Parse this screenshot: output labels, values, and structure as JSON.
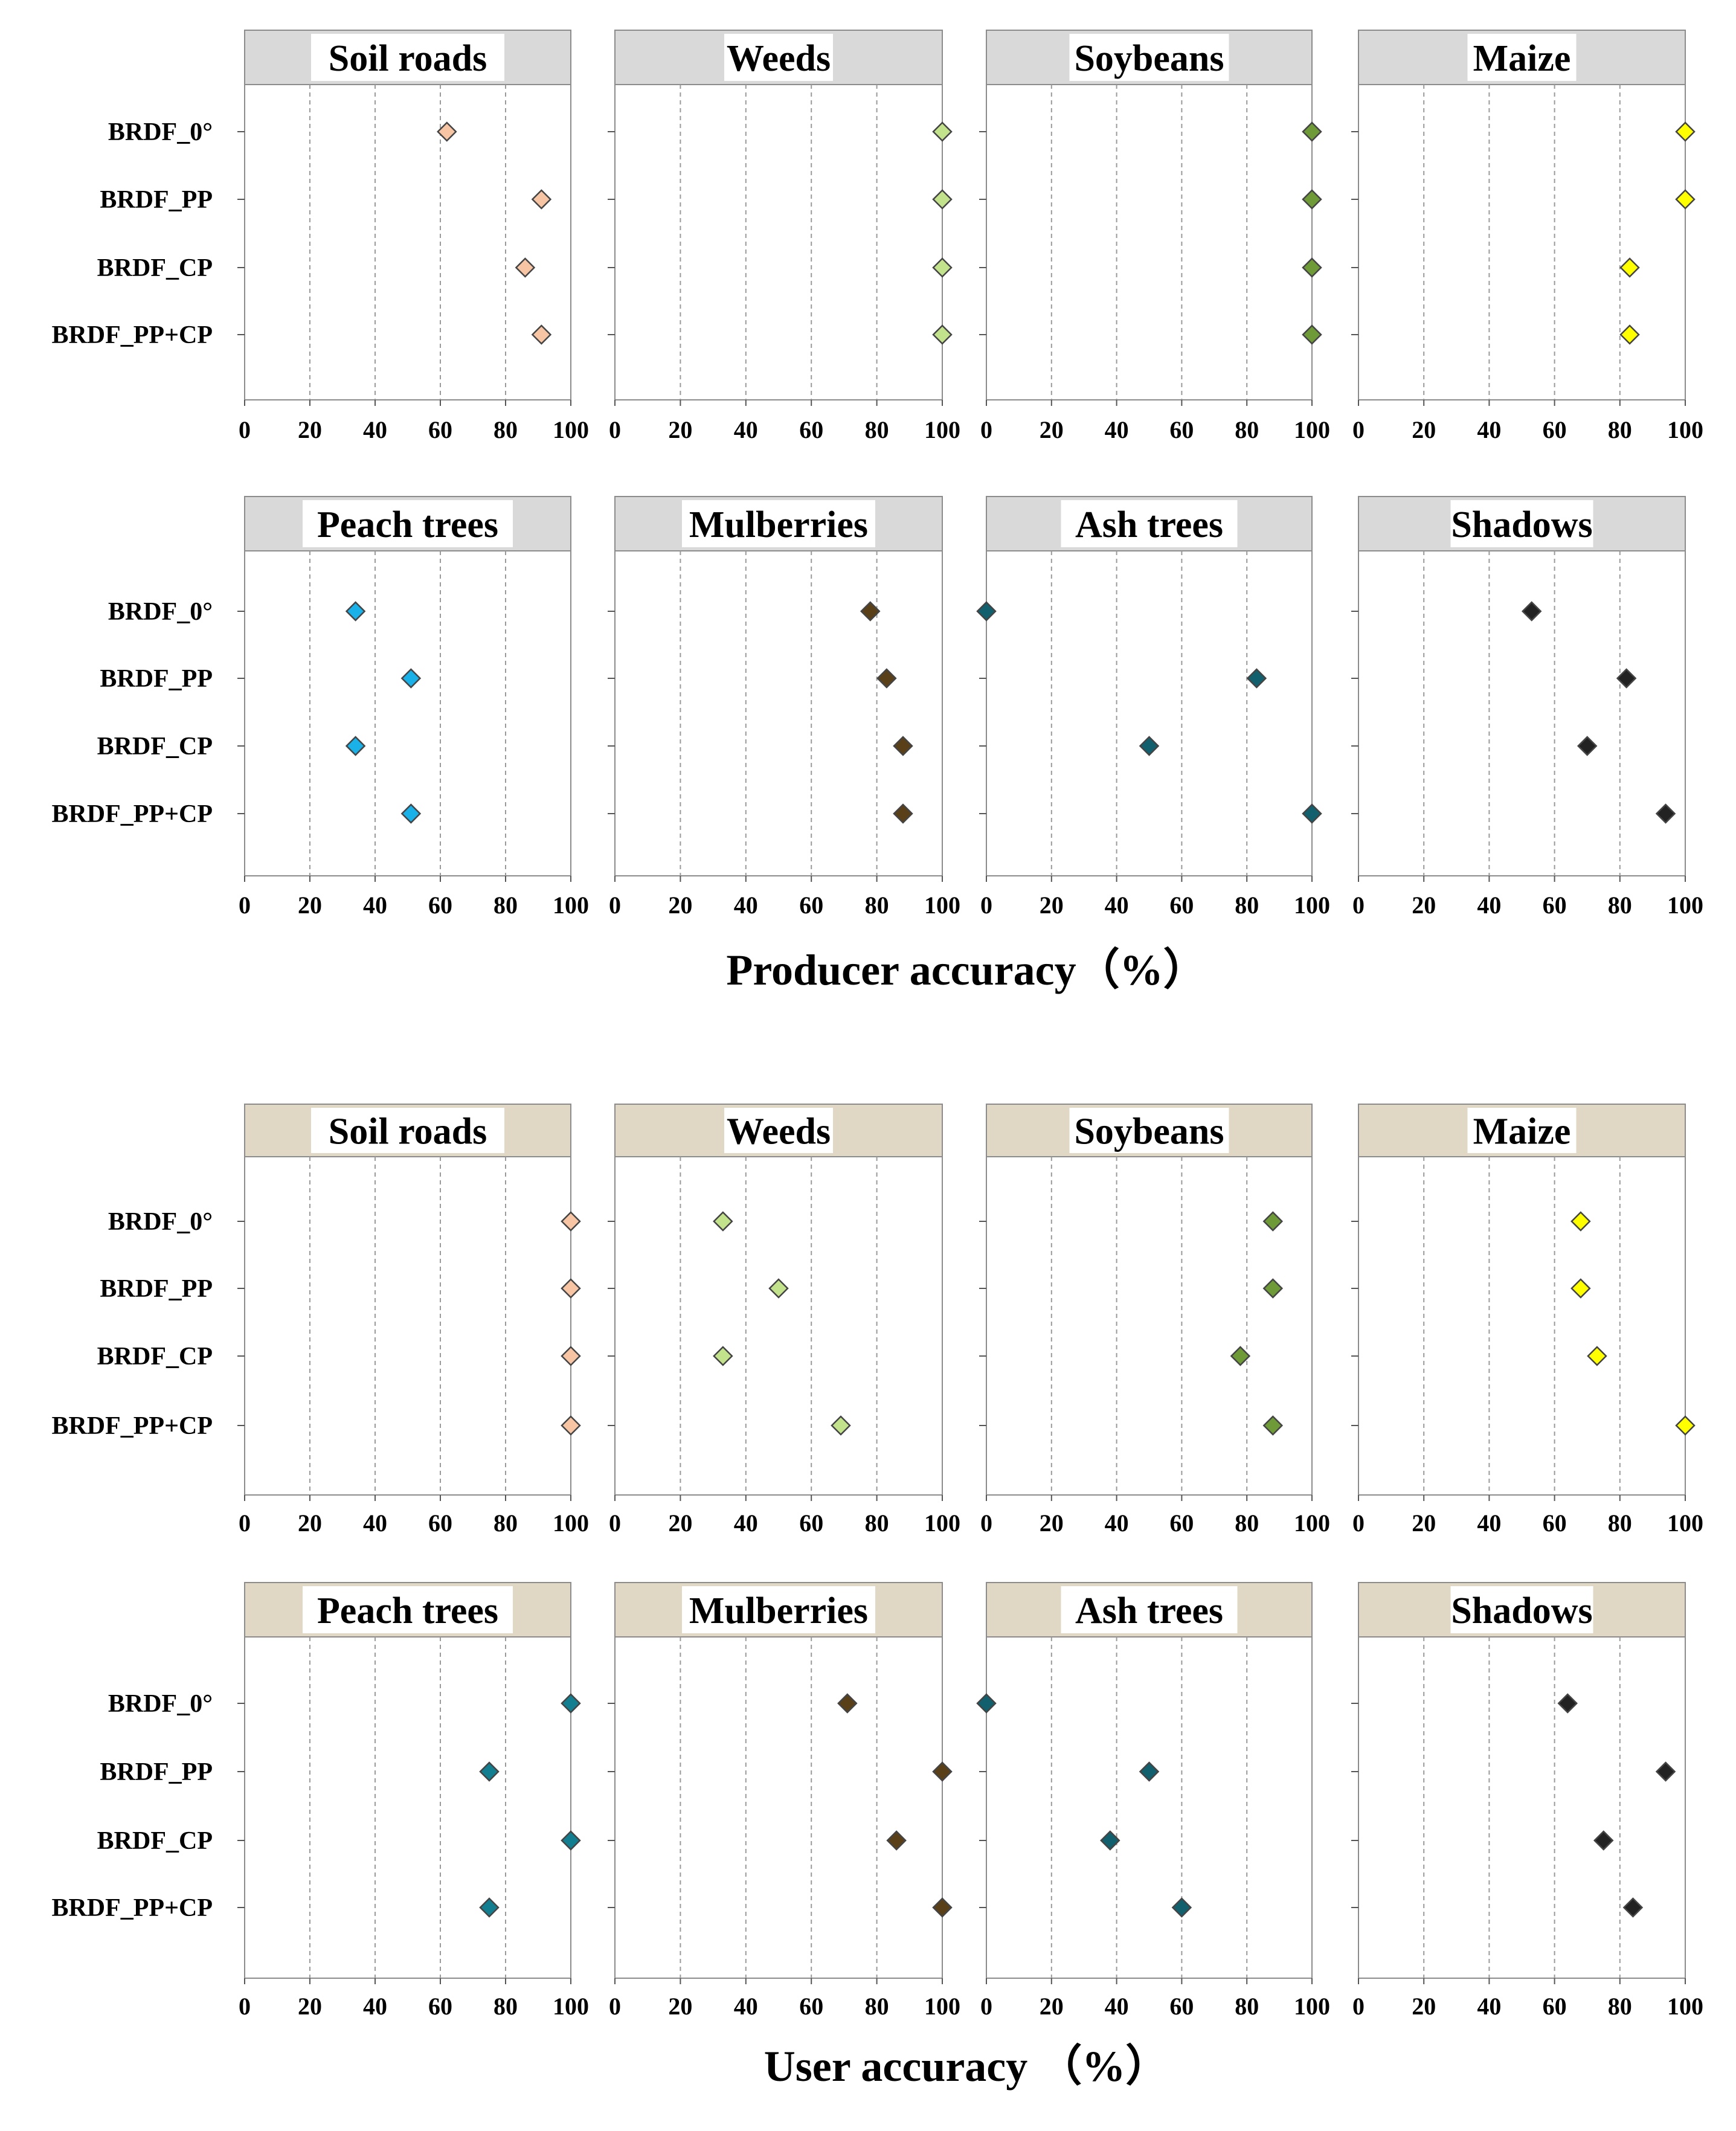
{
  "rows": [
    "BRDF_0°",
    "BRDF_PP",
    "BRDF_CP",
    "BRDF_PP+CP"
  ],
  "ticks": [
    "0",
    "20",
    "40",
    "60",
    "80",
    "100"
  ],
  "xlim": [
    0,
    100
  ],
  "producer_label": "Producer accuracy（%）",
  "user_label": "User accuracy  （%）",
  "colors": {
    "soil": "#f7c4a4",
    "weeds": "#c3e28c",
    "soybeans": "#6e9a37",
    "maize": "#ffff00",
    "peach_producer": "#1ab0e8",
    "peach_user": "#137e90",
    "mulberries": "#5a4019",
    "ash": "#12606e",
    "shadows": "#222222",
    "header_producer": "#d9d9d9",
    "header_user": "#e0d8c5"
  },
  "chart_data": [
    {
      "id": "producer",
      "type": "scatter",
      "xlabel": "Producer accuracy（%）",
      "rows": [
        "BRDF_0°",
        "BRDF_PP",
        "BRDF_CP",
        "BRDF_PP+CP"
      ],
      "xlim": [
        0,
        100
      ],
      "grid": true,
      "panels": [
        {
          "title": "Soil roads",
          "color": "soil",
          "values": [
            62,
            91,
            86,
            91
          ]
        },
        {
          "title": "Weeds",
          "color": "weeds",
          "values": [
            100,
            100,
            100,
            100
          ]
        },
        {
          "title": "Soybeans",
          "color": "soybeans",
          "values": [
            100,
            100,
            100,
            100
          ]
        },
        {
          "title": "Maize",
          "color": "maize",
          "values": [
            100,
            100,
            83,
            83
          ]
        },
        {
          "title": "Peach trees",
          "color": "peach_producer",
          "values": [
            34,
            51,
            34,
            51
          ]
        },
        {
          "title": "Mulberries",
          "color": "mulberries",
          "values": [
            78,
            83,
            88,
            88
          ]
        },
        {
          "title": "Ash trees",
          "color": "ash",
          "values": [
            0,
            83,
            50,
            100
          ]
        },
        {
          "title": "Shadows",
          "color": "shadows",
          "values": [
            53,
            82,
            70,
            94
          ]
        }
      ]
    },
    {
      "id": "user",
      "type": "scatter",
      "xlabel": "User accuracy  （%）",
      "rows": [
        "BRDF_0°",
        "BRDF_PP",
        "BRDF_CP",
        "BRDF_PP+CP"
      ],
      "xlim": [
        0,
        100
      ],
      "grid": true,
      "panels": [
        {
          "title": "Soil roads",
          "color": "soil",
          "values": [
            100,
            100,
            100,
            100
          ]
        },
        {
          "title": "Weeds",
          "color": "weeds",
          "values": [
            33,
            50,
            33,
            69
          ]
        },
        {
          "title": "Soybeans",
          "color": "soybeans",
          "values": [
            88,
            88,
            78,
            88
          ]
        },
        {
          "title": "Maize",
          "color": "maize",
          "values": [
            68,
            68,
            73,
            100
          ]
        },
        {
          "title": "Peach trees",
          "color": "peach_user",
          "values": [
            100,
            75,
            100,
            75
          ]
        },
        {
          "title": "Mulberries",
          "color": "mulberries",
          "values": [
            71,
            100,
            86,
            100
          ]
        },
        {
          "title": "Ash trees",
          "color": "ash",
          "values": [
            0,
            50,
            38,
            60
          ]
        },
        {
          "title": "Shadows",
          "color": "shadows",
          "values": [
            64,
            94,
            75,
            84
          ]
        }
      ]
    }
  ]
}
